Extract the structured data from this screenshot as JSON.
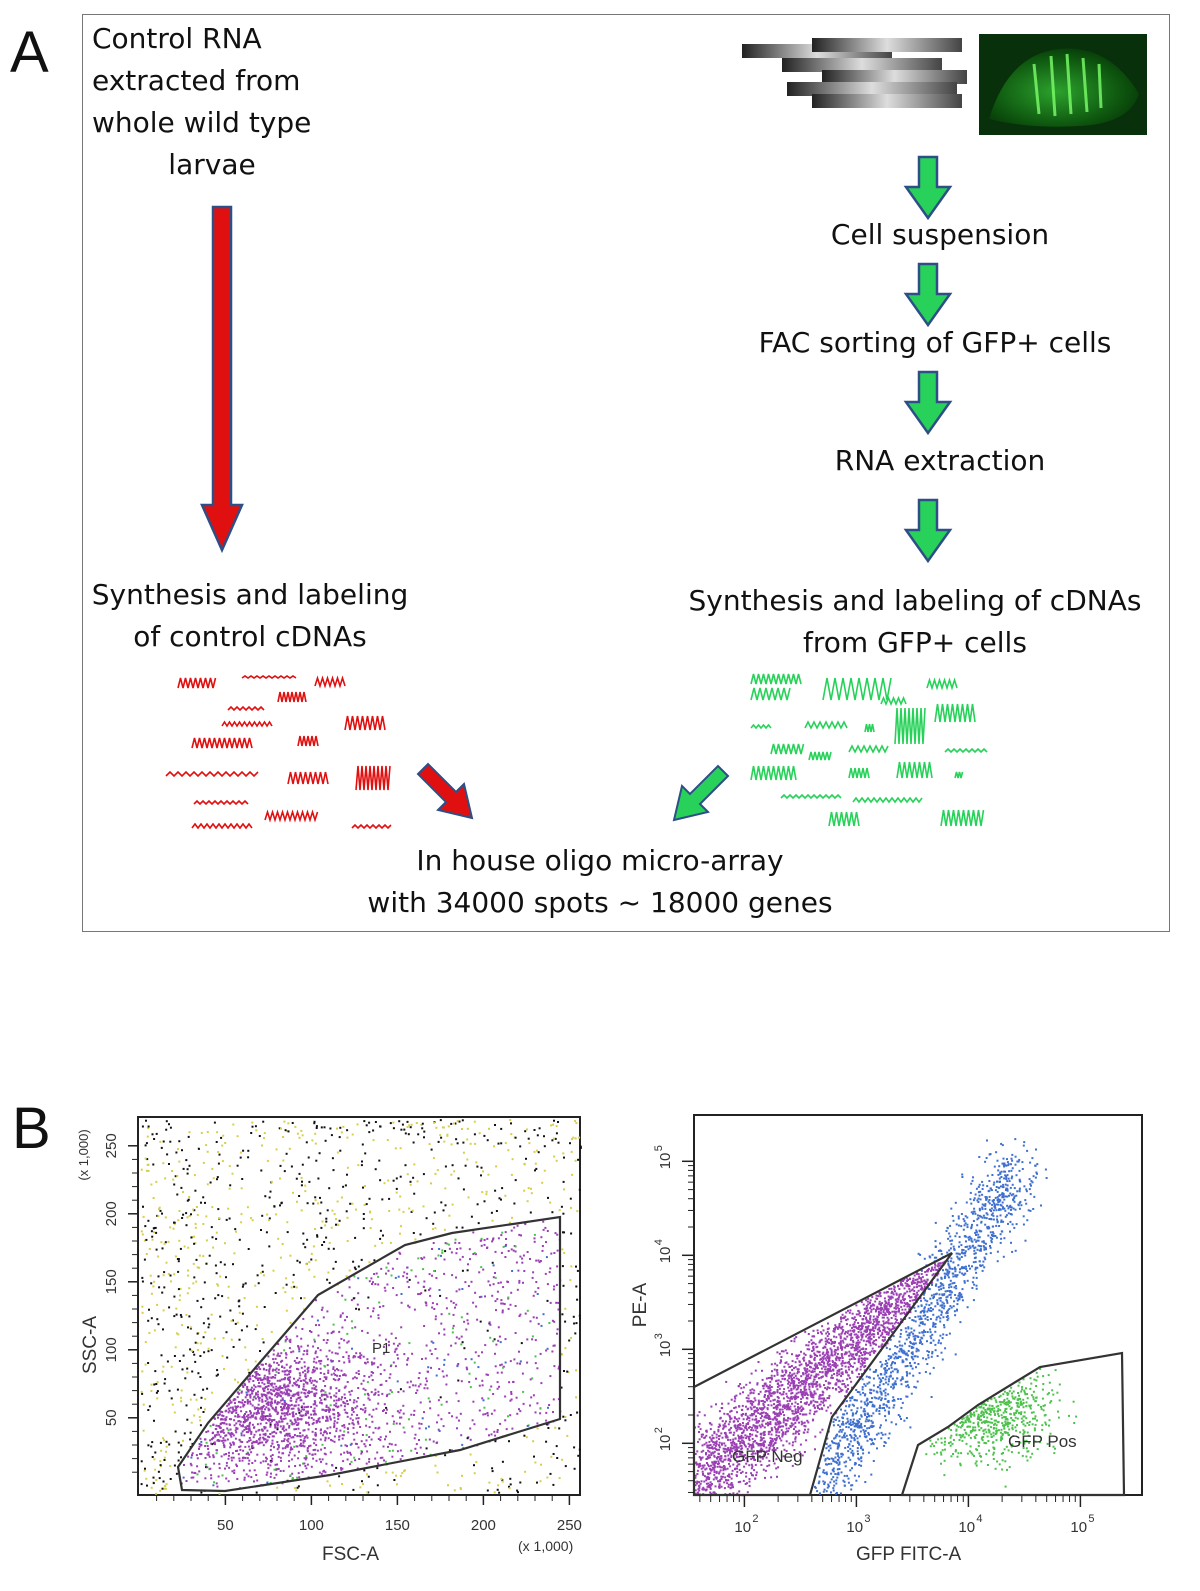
{
  "panel_a": {
    "label": "A",
    "control_rna_lines": [
      "Control RNA",
      "extracted from",
      "whole wild type",
      "larvae"
    ],
    "steps": {
      "cell_suspension": "Cell suspension",
      "fac_sorting": "FAC sorting of GFP+ cells",
      "rna_extraction": "RNA extraction"
    },
    "control_synthesis_lines": [
      "Synthesis and labeling",
      "of control cDNAs"
    ],
    "gfp_synthesis_lines": [
      "Synthesis and labeling of cDNAs",
      "from GFP+ cells"
    ],
    "microarray_lines": [
      "In house oligo micro-array",
      "with 34000 spots ~ 18000 genes"
    ],
    "colors": {
      "control": "#e01010",
      "gfp": "#28d25a",
      "arrow_outline": "#2d4f86"
    }
  },
  "panel_b": {
    "label": "B",
    "left_plot": {
      "x_label": "FSC-A",
      "y_label": "SSC-A",
      "x_multiplier": "(x 1,000)",
      "y_multiplier": "(x 1,000)",
      "x_ticks": [
        "50",
        "100",
        "150",
        "200",
        "250"
      ],
      "y_ticks": [
        "50",
        "100",
        "150",
        "200",
        "250"
      ],
      "gate_label": "P1"
    },
    "right_plot": {
      "x_label": "GFP FITC-A",
      "y_label": "PE-A",
      "x_ticks": [
        {
          "base": "10",
          "exp": "2"
        },
        {
          "base": "10",
          "exp": "3"
        },
        {
          "base": "10",
          "exp": "4"
        },
        {
          "base": "10",
          "exp": "5"
        }
      ],
      "y_ticks": [
        {
          "base": "10",
          "exp": "2"
        },
        {
          "base": "10",
          "exp": "3"
        },
        {
          "base": "10",
          "exp": "4"
        },
        {
          "base": "10",
          "exp": "5"
        }
      ],
      "gate_neg_label": "GFP Neg",
      "gate_pos_label": "GFP Pos"
    },
    "colors": {
      "purple": "#9b3fb5",
      "blue": "#3f6fcf",
      "green": "#4cc24c",
      "black": "#111111",
      "yellow": "#d7cf4a"
    }
  }
}
